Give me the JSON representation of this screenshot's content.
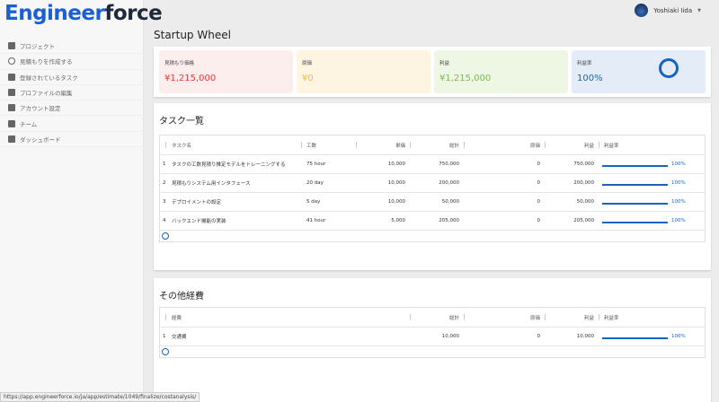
{
  "logo": {
    "a": "Engineer",
    "b": "force"
  },
  "sidebar": {
    "items": [
      {
        "label": "プロジェクト",
        "icon": "copy-icon"
      },
      {
        "label": "見積もりを作成する",
        "icon": "clock-icon"
      },
      {
        "label": "登録されているタスク",
        "icon": "clipboard-check-icon"
      },
      {
        "label": "プロファイルの編集",
        "icon": "person-icon"
      },
      {
        "label": "アカウント設定",
        "icon": "gear-icon"
      },
      {
        "label": "チーム",
        "icon": "people-icon"
      },
      {
        "label": "ダッシュボード",
        "icon": "dashboard-icon"
      }
    ]
  },
  "user": {
    "name": "Yoshiaki Iida"
  },
  "page_title": "Startup Wheel",
  "summary": [
    {
      "label": "見積もり価格",
      "value": "¥1,215,000",
      "bg": "#fdeeee",
      "color": "#e53935"
    },
    {
      "label": "原価",
      "value": "¥0",
      "bg": "#fdf4e1",
      "color": "#f5b93a"
    },
    {
      "label": "利益",
      "value": "¥1,215,000",
      "bg": "#eef6e4",
      "color": "#7cb854"
    },
    {
      "label": "利益率",
      "value": "100%",
      "bg": "#e3ecf7",
      "color": "#1565c0",
      "profit_rate": 1.0
    }
  ],
  "tasks": {
    "title": "タスク一覧",
    "headers": [
      "タスク名",
      "工数",
      "単価",
      "総計",
      "原価",
      "利益",
      "利益率"
    ],
    "rows": [
      [
        "1",
        "タスクの工数見積り推定モデルをトレーニングする",
        "75 hour",
        "10,000",
        "750,000",
        "0",
        "750,000",
        "100%"
      ],
      [
        "2",
        "見積もりシステム用インタフェース",
        "20 day",
        "10,000",
        "200,000",
        "0",
        "200,000",
        "100%"
      ],
      [
        "3",
        "デプロイメントの設定",
        "5 day",
        "10,000",
        "50,000",
        "0",
        "50,000",
        "100%"
      ],
      [
        "4",
        "バックエンド機能の実装",
        "41 hour",
        "5,000",
        "205,000",
        "0",
        "205,000",
        "100%"
      ]
    ]
  },
  "expenses": {
    "title": "その他経費",
    "headers": [
      "経費",
      "総計",
      "原価",
      "利益",
      "利益率"
    ],
    "rows": [
      [
        "1",
        "交通費",
        "10,000",
        "0",
        "10,000",
        "100%"
      ]
    ]
  },
  "status_url": "https://app.engineerforce.io/ja/app/estimate/1049/finalize/costanalysis/"
}
